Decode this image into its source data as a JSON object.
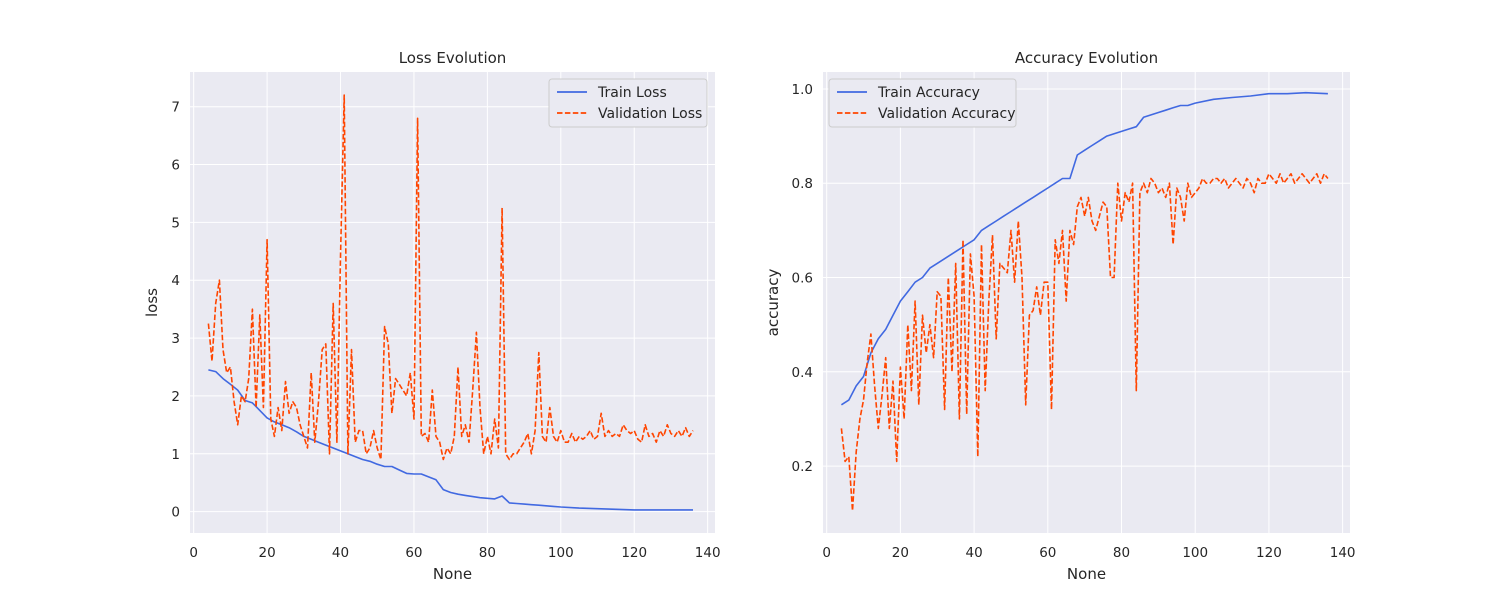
{
  "figure": {
    "colors": {
      "train": "#4169e1",
      "validation": "#ff4500",
      "plot_bg": "#eaeaf2",
      "grid": "#ffffff"
    }
  },
  "chart_data": [
    {
      "type": "line",
      "title": "Loss Evolution",
      "xlabel": "None",
      "ylabel": "loss",
      "xlim": [
        -1,
        142
      ],
      "ylim": [
        -0.37,
        7.6
      ],
      "xticks": [
        0,
        20,
        40,
        60,
        80,
        100,
        120,
        140
      ],
      "yticks": [
        0,
        1,
        2,
        3,
        4,
        5,
        6,
        7
      ],
      "grid": true,
      "legend_position": "top-right",
      "series": [
        {
          "name": "Train Loss",
          "style": "solid",
          "color": "#4169e1",
          "x": [
            4,
            6,
            8,
            10,
            12,
            14,
            16,
            18,
            20,
            22,
            24,
            26,
            28,
            30,
            32,
            34,
            36,
            38,
            40,
            42,
            44,
            46,
            48,
            50,
            52,
            54,
            56,
            58,
            60,
            62,
            64,
            66,
            68,
            70,
            72,
            74,
            76,
            78,
            80,
            82,
            84,
            86,
            88,
            90,
            92,
            94,
            96,
            98,
            100,
            105,
            110,
            115,
            120,
            125,
            130,
            136
          ],
          "y": [
            2.45,
            2.42,
            2.3,
            2.2,
            2.1,
            1.92,
            1.88,
            1.75,
            1.62,
            1.55,
            1.5,
            1.45,
            1.38,
            1.3,
            1.25,
            1.2,
            1.15,
            1.1,
            1.05,
            1.0,
            0.95,
            0.9,
            0.87,
            0.82,
            0.78,
            0.78,
            0.72,
            0.66,
            0.65,
            0.65,
            0.6,
            0.55,
            0.38,
            0.33,
            0.3,
            0.28,
            0.26,
            0.24,
            0.23,
            0.22,
            0.27,
            0.15,
            0.14,
            0.13,
            0.12,
            0.11,
            0.1,
            0.09,
            0.08,
            0.06,
            0.05,
            0.04,
            0.03,
            0.03,
            0.03,
            0.03
          ]
        },
        {
          "name": "Validation Loss",
          "style": "dashed",
          "color": "#ff4500",
          "x": [
            4,
            5,
            6,
            7,
            8,
            9,
            10,
            11,
            12,
            13,
            14,
            15,
            16,
            17,
            18,
            19,
            20,
            21,
            22,
            23,
            24,
            25,
            26,
            27,
            28,
            29,
            30,
            31,
            32,
            33,
            34,
            35,
            36,
            37,
            38,
            39,
            40,
            41,
            42,
            43,
            44,
            45,
            46,
            47,
            48,
            49,
            50,
            51,
            52,
            53,
            54,
            55,
            56,
            57,
            58,
            59,
            60,
            61,
            62,
            63,
            64,
            65,
            66,
            67,
            68,
            69,
            70,
            71,
            72,
            73,
            74,
            75,
            76,
            77,
            78,
            79,
            80,
            81,
            82,
            83,
            84,
            85,
            86,
            87,
            88,
            89,
            90,
            91,
            92,
            93,
            94,
            95,
            96,
            97,
            98,
            99,
            100,
            101,
            102,
            103,
            104,
            105,
            106,
            107,
            108,
            109,
            110,
            111,
            112,
            113,
            114,
            115,
            116,
            117,
            118,
            119,
            120,
            121,
            122,
            123,
            124,
            125,
            126,
            127,
            128,
            129,
            130,
            131,
            132,
            133,
            134,
            135,
            136
          ],
          "y": [
            3.25,
            2.6,
            3.6,
            4.0,
            2.8,
            2.4,
            2.5,
            1.9,
            1.5,
            2.0,
            1.9,
            2.3,
            3.5,
            1.8,
            3.4,
            1.8,
            4.7,
            1.6,
            1.3,
            1.8,
            1.4,
            2.25,
            1.7,
            1.9,
            1.8,
            1.5,
            1.3,
            1.1,
            2.4,
            1.2,
            1.9,
            2.8,
            2.9,
            1.0,
            3.6,
            1.2,
            4.4,
            7.2,
            1.0,
            2.8,
            1.2,
            1.4,
            1.4,
            1.0,
            1.1,
            1.4,
            1.1,
            0.9,
            3.2,
            2.9,
            1.7,
            2.3,
            2.2,
            2.1,
            2.0,
            2.4,
            1.6,
            6.8,
            1.3,
            1.35,
            1.2,
            2.1,
            1.3,
            1.2,
            0.9,
            1.1,
            1.0,
            1.3,
            2.5,
            1.3,
            1.5,
            1.2,
            2.1,
            3.1,
            1.8,
            1.0,
            1.3,
            1.0,
            1.6,
            1.1,
            5.25,
            1.0,
            0.9,
            1.0,
            1.0,
            1.1,
            1.2,
            1.35,
            1.0,
            1.4,
            2.75,
            1.3,
            1.2,
            1.8,
            1.3,
            1.2,
            1.4,
            1.2,
            1.2,
            1.35,
            1.2,
            1.3,
            1.25,
            1.3,
            1.4,
            1.25,
            1.3,
            1.7,
            1.3,
            1.4,
            1.3,
            1.35,
            1.3,
            1.5,
            1.4,
            1.35,
            1.4,
            1.25,
            1.2,
            1.5,
            1.3,
            1.35,
            1.2,
            1.4,
            1.3,
            1.5,
            1.35,
            1.3,
            1.4,
            1.3,
            1.45,
            1.3,
            1.4
          ]
        }
      ]
    },
    {
      "type": "line",
      "title": "Accuracy Evolution",
      "xlabel": "None",
      "ylabel": "accuracy",
      "xlim": [
        -1,
        142
      ],
      "ylim": [
        0.058,
        1.036
      ],
      "xticks": [
        0,
        20,
        40,
        60,
        80,
        100,
        120,
        140
      ],
      "yticks": [
        0.2,
        0.4,
        0.6,
        0.8,
        1.0
      ],
      "ytick_labels": [
        "0.2",
        "0.4",
        "0.6",
        "0.8",
        "1.0"
      ],
      "grid": true,
      "legend_position": "top-left",
      "series": [
        {
          "name": "Train Accuracy",
          "style": "solid",
          "color": "#4169e1",
          "x": [
            4,
            6,
            8,
            10,
            12,
            14,
            16,
            18,
            20,
            22,
            24,
            26,
            28,
            30,
            32,
            34,
            36,
            38,
            40,
            42,
            44,
            46,
            48,
            50,
            52,
            54,
            56,
            58,
            60,
            62,
            64,
            66,
            68,
            70,
            72,
            74,
            76,
            78,
            80,
            82,
            84,
            86,
            88,
            90,
            92,
            94,
            96,
            98,
            100,
            105,
            110,
            115,
            120,
            125,
            130,
            136
          ],
          "y": [
            0.33,
            0.34,
            0.37,
            0.39,
            0.44,
            0.47,
            0.49,
            0.52,
            0.55,
            0.57,
            0.59,
            0.6,
            0.62,
            0.63,
            0.64,
            0.65,
            0.66,
            0.67,
            0.68,
            0.7,
            0.71,
            0.72,
            0.73,
            0.74,
            0.75,
            0.76,
            0.77,
            0.78,
            0.79,
            0.8,
            0.81,
            0.81,
            0.86,
            0.87,
            0.88,
            0.89,
            0.9,
            0.905,
            0.91,
            0.915,
            0.92,
            0.94,
            0.945,
            0.95,
            0.955,
            0.96,
            0.965,
            0.965,
            0.97,
            0.978,
            0.982,
            0.985,
            0.99,
            0.99,
            0.992,
            0.99
          ]
        },
        {
          "name": "Validation Accuracy",
          "style": "dashed",
          "color": "#ff4500",
          "x": [
            4,
            5,
            6,
            7,
            8,
            9,
            10,
            11,
            12,
            13,
            14,
            15,
            16,
            17,
            18,
            19,
            20,
            21,
            22,
            23,
            24,
            25,
            26,
            27,
            28,
            29,
            30,
            31,
            32,
            33,
            34,
            35,
            36,
            37,
            38,
            39,
            40,
            41,
            42,
            43,
            44,
            45,
            46,
            47,
            48,
            49,
            50,
            51,
            52,
            53,
            54,
            55,
            56,
            57,
            58,
            59,
            60,
            61,
            62,
            63,
            64,
            65,
            66,
            67,
            68,
            69,
            70,
            71,
            72,
            73,
            74,
            75,
            76,
            77,
            78,
            79,
            80,
            81,
            82,
            83,
            84,
            85,
            86,
            87,
            88,
            89,
            90,
            91,
            92,
            93,
            94,
            95,
            96,
            97,
            98,
            99,
            100,
            101,
            102,
            103,
            104,
            105,
            106,
            107,
            108,
            109,
            110,
            111,
            112,
            113,
            114,
            115,
            116,
            117,
            118,
            119,
            120,
            121,
            122,
            123,
            124,
            125,
            126,
            127,
            128,
            129,
            130,
            131,
            132,
            133,
            134,
            135,
            136
          ],
          "y": [
            0.28,
            0.21,
            0.22,
            0.105,
            0.23,
            0.3,
            0.34,
            0.42,
            0.48,
            0.37,
            0.28,
            0.35,
            0.43,
            0.28,
            0.38,
            0.21,
            0.41,
            0.3,
            0.5,
            0.36,
            0.55,
            0.33,
            0.52,
            0.44,
            0.5,
            0.43,
            0.57,
            0.56,
            0.32,
            0.6,
            0.4,
            0.63,
            0.3,
            0.68,
            0.31,
            0.65,
            0.56,
            0.22,
            0.67,
            0.36,
            0.55,
            0.69,
            0.47,
            0.63,
            0.62,
            0.61,
            0.7,
            0.59,
            0.72,
            0.6,
            0.33,
            0.52,
            0.53,
            0.58,
            0.52,
            0.59,
            0.59,
            0.32,
            0.68,
            0.63,
            0.7,
            0.55,
            0.7,
            0.67,
            0.75,
            0.77,
            0.73,
            0.77,
            0.72,
            0.7,
            0.73,
            0.76,
            0.75,
            0.6,
            0.6,
            0.8,
            0.72,
            0.78,
            0.76,
            0.8,
            0.36,
            0.78,
            0.8,
            0.78,
            0.81,
            0.8,
            0.78,
            0.79,
            0.77,
            0.8,
            0.67,
            0.79,
            0.77,
            0.72,
            0.8,
            0.77,
            0.78,
            0.79,
            0.81,
            0.8,
            0.8,
            0.81,
            0.81,
            0.8,
            0.81,
            0.79,
            0.8,
            0.81,
            0.8,
            0.79,
            0.81,
            0.8,
            0.78,
            0.81,
            0.8,
            0.8,
            0.82,
            0.81,
            0.8,
            0.82,
            0.8,
            0.81,
            0.82,
            0.8,
            0.81,
            0.82,
            0.81,
            0.8,
            0.81,
            0.82,
            0.8,
            0.82,
            0.81
          ]
        }
      ]
    }
  ]
}
